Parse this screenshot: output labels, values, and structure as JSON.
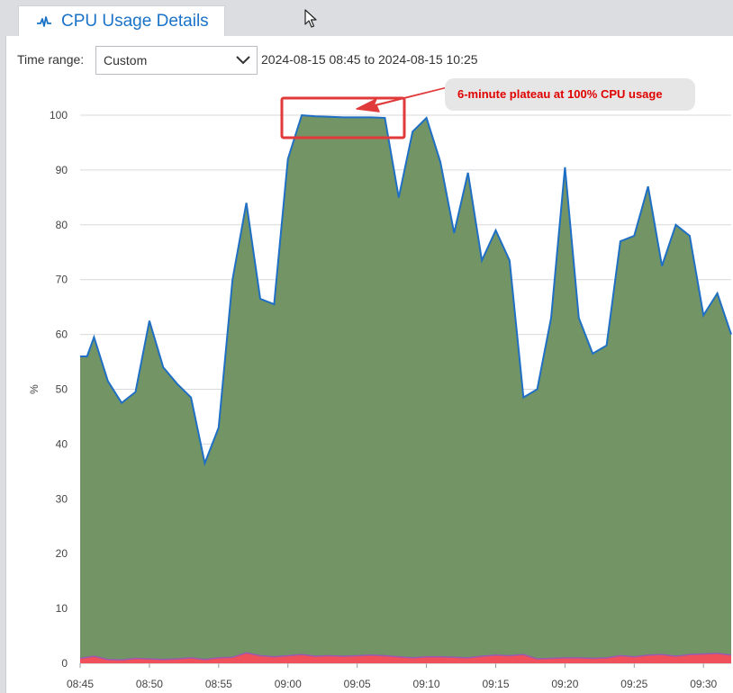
{
  "tab": {
    "title": "CPU Usage Details",
    "icon": "activity-chart-icon"
  },
  "controls": {
    "time_range_label": "Time range:",
    "time_range_value": "Custom",
    "range_start": "2024-08-15 08:45",
    "range_to": "to",
    "range_end": "2024-08-15 10:25"
  },
  "annotation": {
    "text": "6-minute plateau at 100% CPU usage"
  },
  "colors": {
    "area_main": "#739465",
    "line_main": "#1f6fc4",
    "area_low": "#f0505a",
    "line_low": "#9a5ab0",
    "annotation": "#e03a3a"
  },
  "chart_data": {
    "type": "area",
    "ylabel": "%",
    "ylim": [
      0,
      100
    ],
    "yticks": [
      0,
      10,
      20,
      30,
      40,
      50,
      60,
      70,
      80,
      90,
      100
    ],
    "xlim": [
      "08:45",
      "09:32"
    ],
    "xticks": [
      "08:45",
      "08:50",
      "08:55",
      "09:00",
      "09:05",
      "09:10",
      "09:15",
      "09:20",
      "09:25",
      "09:30"
    ],
    "grid": true,
    "series": [
      {
        "key": "main",
        "x": [
          "08:45",
          "08:45:30",
          "08:46",
          "08:47",
          "08:48",
          "08:49",
          "08:50",
          "08:51",
          "08:52",
          "08:53",
          "08:54",
          "08:55",
          "08:56",
          "08:57",
          "08:58",
          "08:59",
          "09:00",
          "09:01",
          "09:02",
          "09:03",
          "09:04",
          "09:05",
          "09:06",
          "09:07",
          "09:08",
          "09:09",
          "09:10",
          "09:11",
          "09:12",
          "09:13",
          "09:14",
          "09:15",
          "09:16",
          "09:17",
          "09:18",
          "09:19",
          "09:20",
          "09:21",
          "09:22",
          "09:23",
          "09:24",
          "09:25",
          "09:26",
          "09:27",
          "09:28",
          "09:29",
          "09:30",
          "09:31",
          "09:32"
        ],
        "values": [
          56,
          56,
          59.5,
          51.5,
          47.5,
          49.5,
          62.5,
          54,
          51,
          48.5,
          36.5,
          43,
          70,
          84,
          66.5,
          65.5,
          92,
          100,
          99.8,
          99.7,
          99.6,
          99.6,
          99.6,
          99.5,
          85,
          97,
          99.5,
          91.5,
          78.5,
          89.5,
          73.5,
          79,
          73.5,
          48.5,
          50,
          63,
          90.5,
          63,
          56.5,
          58,
          77,
          78,
          87,
          72.5,
          80,
          78,
          63.5,
          67.5,
          60
        ]
      },
      {
        "key": "low",
        "x": [
          "08:45",
          "08:46",
          "08:47",
          "08:48",
          "08:49",
          "08:50",
          "08:51",
          "08:52",
          "08:53",
          "08:54",
          "08:55",
          "08:56",
          "08:57",
          "08:58",
          "08:59",
          "09:00",
          "09:01",
          "09:02",
          "09:03",
          "09:04",
          "09:05",
          "09:06",
          "09:07",
          "09:08",
          "09:09",
          "09:10",
          "09:11",
          "09:12",
          "09:13",
          "09:14",
          "09:15",
          "09:16",
          "09:17",
          "09:18",
          "09:19",
          "09:20",
          "09:21",
          "09:22",
          "09:23",
          "09:24",
          "09:25",
          "09:26",
          "09:27",
          "09:28",
          "09:29",
          "09:30",
          "09:31",
          "09:32"
        ],
        "values": [
          0.9,
          1.3,
          0.7,
          0.6,
          0.9,
          0.8,
          0.7,
          0.8,
          1.0,
          0.7,
          1.0,
          1.1,
          1.9,
          1.4,
          1.2,
          1.4,
          1.6,
          1.3,
          1.4,
          1.3,
          1.4,
          1.5,
          1.4,
          1.2,
          1.0,
          1.2,
          1.2,
          1.1,
          1.0,
          1.3,
          1.5,
          1.4,
          1.6,
          0.8,
          0.9,
          1.0,
          1.0,
          0.9,
          1.0,
          1.4,
          1.2,
          1.5,
          1.6,
          1.3,
          1.6,
          1.7,
          1.8,
          1.5
        ]
      }
    ]
  }
}
